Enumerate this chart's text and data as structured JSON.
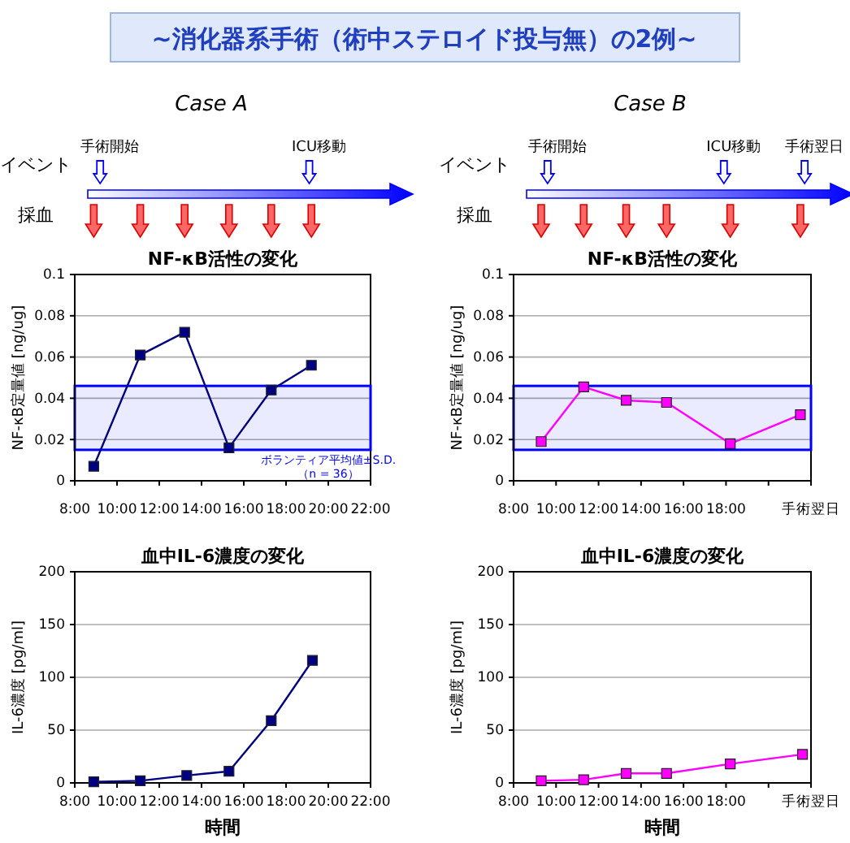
{
  "chart_data": [
    {
      "type": "line",
      "subtitle": "Case A",
      "title": "NF-κB活性の変化",
      "ylabel": "NF-κB定量値 [ng/ug]",
      "xlim": [
        8,
        22
      ],
      "ylim": [
        0,
        0.1
      ],
      "xticks": [
        {
          "value": 8,
          "label": "8:00"
        },
        {
          "value": 10,
          "label": "10:00"
        },
        {
          "value": 12,
          "label": "12:00"
        },
        {
          "value": 14,
          "label": "14:00"
        },
        {
          "value": 16,
          "label": "16:00"
        },
        {
          "value": 18,
          "label": "18:00"
        },
        {
          "value": 20,
          "label": "20:00"
        },
        {
          "value": 22,
          "label": "22:00"
        }
      ],
      "yticks": [
        0,
        0.02,
        0.04,
        0.06,
        0.08,
        0.1
      ],
      "grid": "y",
      "marker": "square",
      "x": [
        8.9,
        11.1,
        13.2,
        15.3,
        17.3,
        19.2
      ],
      "series": [
        {
          "color": "#000080",
          "values": [
            0.007,
            0.061,
            0.072,
            0.016,
            0.044,
            0.056
          ]
        }
      ],
      "bands": [
        {
          "axis": "y",
          "from": 0.015,
          "to": 0.046,
          "color": "#0000ff",
          "label": "ボランティア平均値±S.D.\n（n = 36）"
        }
      ],
      "annotations": [
        "イベント",
        "採血",
        "手術開始",
        "ICU移動",
        "~消化器系手術（術中ステロイド投与無）の2例~"
      ]
    },
    {
      "type": "line",
      "subtitle": "Case B",
      "title": "NF-κB活性の変化",
      "ylabel": "NF-κB定量値 [ng/ug]",
      "xlim": [
        8,
        22
      ],
      "ylim": [
        0,
        0.1
      ],
      "xticks": [
        {
          "value": 8,
          "label": "8:00"
        },
        {
          "value": 10,
          "label": "10:00"
        },
        {
          "value": 12,
          "label": "12:00"
        },
        {
          "value": 14,
          "label": "14:00"
        },
        {
          "value": 16,
          "label": "16:00"
        },
        {
          "value": 18,
          "label": "18:00"
        },
        {
          "value": 20,
          "label": null
        },
        {
          "value": 22,
          "label": "手術翌日"
        }
      ],
      "yticks": [
        0,
        0.02,
        0.04,
        0.06,
        0.08,
        0.1
      ],
      "grid": "y",
      "marker": "square",
      "x": [
        9.3,
        11.3,
        13.3,
        15.2,
        18.2,
        21.5
      ],
      "series": [
        {
          "color": "#ff00ff",
          "values": [
            0.019,
            0.0455,
            0.039,
            0.038,
            0.018,
            0.032
          ]
        }
      ],
      "bands": [
        {
          "axis": "y",
          "from": 0.015,
          "to": 0.046,
          "color": "#0000ff"
        }
      ],
      "annotations": [
        "イベント",
        "採血",
        "手術開始",
        "ICU移動",
        "手術翌日"
      ]
    },
    {
      "type": "line",
      "title": "血中IL-6濃度の変化",
      "ylabel": "IL-6濃度 [pg/ml]",
      "xlabel": "時間",
      "xlim": [
        8,
        22
      ],
      "ylim": [
        0,
        200
      ],
      "xticks": [
        {
          "value": 8,
          "label": "8:00"
        },
        {
          "value": 10,
          "label": "10:00"
        },
        {
          "value": 12,
          "label": "12:00"
        },
        {
          "value": 14,
          "label": "14:00"
        },
        {
          "value": 16,
          "label": "16:00"
        },
        {
          "value": 18,
          "label": "18:00"
        },
        {
          "value": 20,
          "label": "20:00"
        },
        {
          "value": 22,
          "label": "22:00"
        }
      ],
      "yticks": [
        0,
        50,
        100,
        150,
        200
      ],
      "grid": "y",
      "marker": "square",
      "x": [
        8.9,
        11.1,
        13.3,
        15.3,
        17.3,
        19.25
      ],
      "series": [
        {
          "color": "#000080",
          "values": [
            1,
            2,
            7,
            11,
            59,
            116
          ]
        }
      ]
    },
    {
      "type": "line",
      "title": "血中IL-6濃度の変化",
      "ylabel": "IL-6濃度 [pg/ml]",
      "xlabel": "時間",
      "xlim": [
        8,
        22
      ],
      "ylim": [
        0,
        200
      ],
      "xticks": [
        {
          "value": 8,
          "label": "8:00"
        },
        {
          "value": 10,
          "label": "10:00"
        },
        {
          "value": 12,
          "label": "12:00"
        },
        {
          "value": 14,
          "label": "14:00"
        },
        {
          "value": 16,
          "label": "16:00"
        },
        {
          "value": 18,
          "label": "18:00"
        },
        {
          "value": 20,
          "label": null
        },
        {
          "value": 22,
          "label": "手術翌日"
        }
      ],
      "yticks": [
        0,
        50,
        100,
        150,
        200
      ],
      "grid": "y",
      "marker": "square",
      "x": [
        9.3,
        11.3,
        13.3,
        15.2,
        18.2,
        21.6
      ],
      "series": [
        {
          "color": "#ff00ff",
          "values": [
            2,
            3,
            9,
            9,
            18,
            27
          ]
        }
      ]
    }
  ]
}
